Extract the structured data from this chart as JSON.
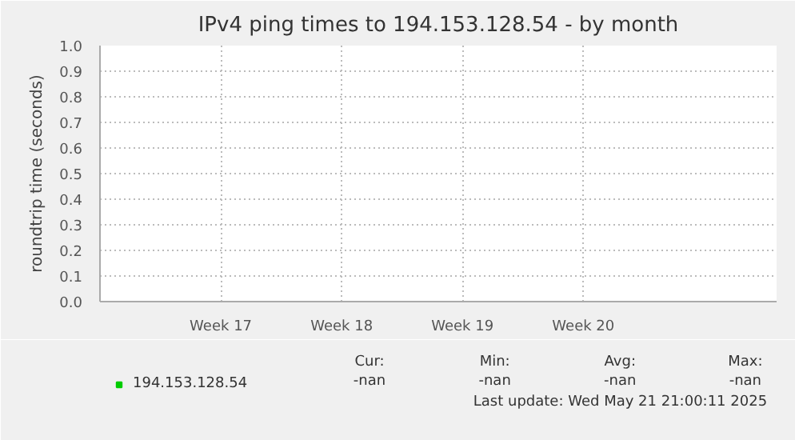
{
  "chart_data": {
    "type": "line",
    "title": "IPv4 ping times to 194.153.128.54 - by month",
    "ylabel": "roundtrip time (seconds)",
    "categories": [
      "Week 17",
      "Week 18",
      "Week 19",
      "Week 20"
    ],
    "series": [
      {
        "name": "194.153.128.54",
        "color": "#00cc00",
        "values": [
          null,
          null,
          null,
          null
        ]
      }
    ],
    "ylim": [
      0,
      1.0
    ],
    "yticks": [
      {
        "value": 0,
        "label": "0.0"
      },
      0.1,
      0.2,
      0.3,
      0.4,
      0.5,
      0.6,
      0.7,
      0.8,
      0.9,
      {
        "value": 1,
        "label": "1.0"
      }
    ],
    "grid": true,
    "legend": "bottom",
    "annotations": [
      "Cur:",
      "-nan",
      "Min:",
      "-nan",
      "Avg:",
      "-nan",
      "Max:",
      "-nan",
      "Last update: Wed May 21 21:00:11 2025"
    ]
  }
}
